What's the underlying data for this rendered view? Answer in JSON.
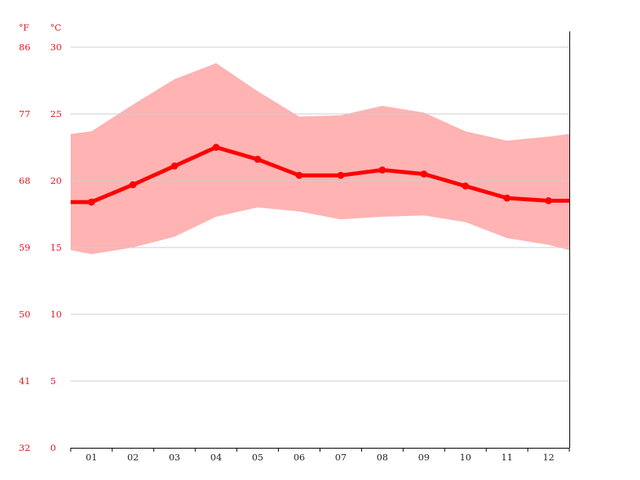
{
  "chart_data": {
    "type": "line",
    "categories": [
      "01",
      "02",
      "03",
      "04",
      "05",
      "06",
      "07",
      "08",
      "09",
      "10",
      "11",
      "12"
    ],
    "y_unit_left": "°F",
    "y_unit_right": "°C",
    "yticks_c": [
      "0",
      "5",
      "10",
      "15",
      "20",
      "25",
      "30"
    ],
    "yticks_f": [
      "32",
      "41",
      "50",
      "59",
      "68",
      "77",
      "86"
    ],
    "ylim": [
      0,
      30
    ],
    "grid": true,
    "series": [
      {
        "role": "mean",
        "values": [
          18.4,
          19.7,
          21.1,
          22.5,
          21.6,
          20.4,
          20.4,
          20.8,
          20.5,
          19.6,
          18.7,
          18.5
        ]
      }
    ],
    "band": {
      "min": [
        14.5,
        15.0,
        15.8,
        17.3,
        18.0,
        17.7,
        17.1,
        17.3,
        17.4,
        16.9,
        15.7,
        15.2
      ],
      "max": [
        23.7,
        25.7,
        27.6,
        28.8,
        26.7,
        24.8,
        24.9,
        25.6,
        25.1,
        23.7,
        23.0,
        23.3
      ],
      "edge_left": {
        "min": 14.8,
        "max": 23.5
      },
      "edge_right": {
        "min": 14.8,
        "max": 23.5
      }
    },
    "colors": {
      "line": "#ff0000",
      "band": "#ffb3b3",
      "grid": "#cccccc",
      "text": "#e4161c",
      "axis": "#000000"
    }
  }
}
